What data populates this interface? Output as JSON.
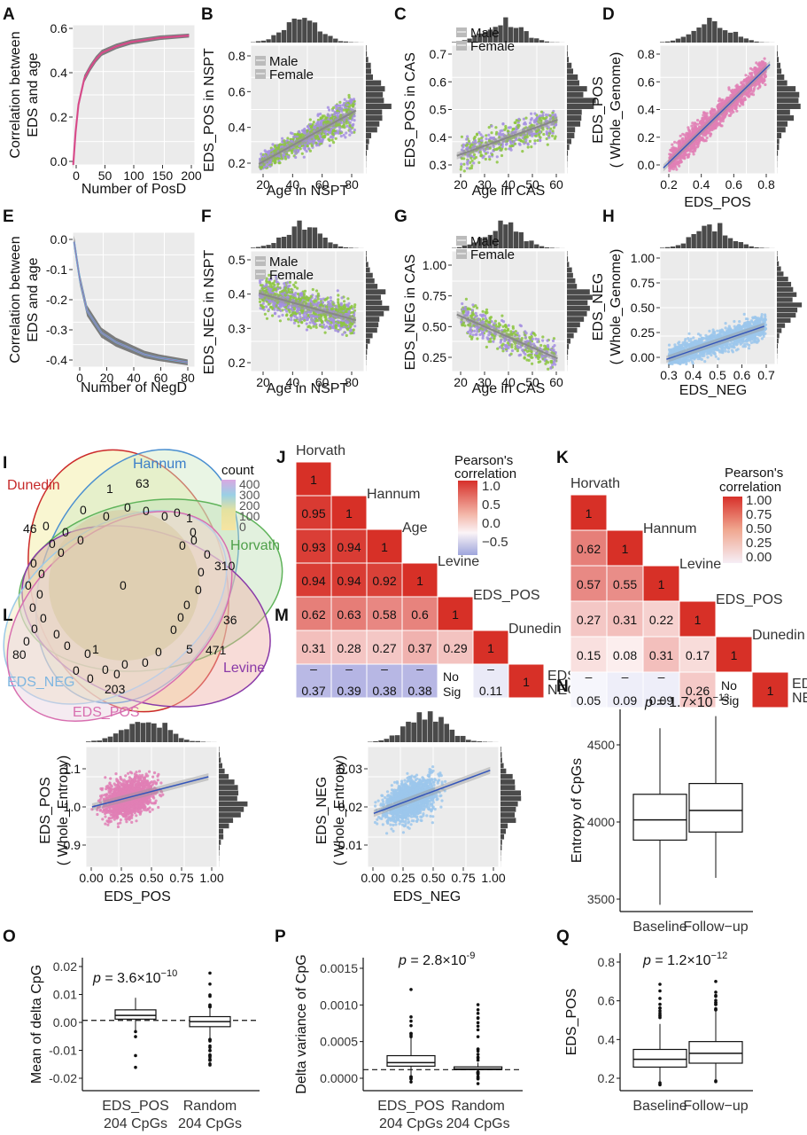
{
  "panels": {
    "A": {
      "letter": "A",
      "ylabel": [
        "Correlation between",
        "EDS and age"
      ],
      "xlabel": "Number of PosD",
      "yticks": [
        "0.0",
        "0.2",
        "0.4",
        "0.6"
      ],
      "xticks": [
        "0",
        "50",
        "100",
        "150",
        "200"
      ]
    },
    "B": {
      "letter": "B",
      "ylabel": "EDS_POS in NSPT",
      "xlabel": "Age in NSPT",
      "yticks": [
        "0.2",
        "0.4",
        "0.6",
        "0.8"
      ],
      "xticks": [
        "20",
        "40",
        "60",
        "80"
      ],
      "legend": [
        "Male",
        "Female"
      ]
    },
    "C": {
      "letter": "C",
      "ylabel": "EDS_POS in CAS",
      "xlabel": "Age in CAS",
      "yticks": [
        "0.3",
        "0.4",
        "0.5",
        "0.6",
        "0.7"
      ],
      "xticks": [
        "20",
        "30",
        "40",
        "50",
        "60"
      ],
      "legend": [
        "Male",
        "Female"
      ]
    },
    "D": {
      "letter": "D",
      "ylabel": [
        "EDS_POS",
        "( Whole_Genome)"
      ],
      "xlabel": "EDS_POS",
      "yticks": [
        "0.0",
        "0.2",
        "0.4",
        "0.6",
        "0.8"
      ],
      "xticks": [
        "0.2",
        "0.4",
        "0.6",
        "0.8"
      ]
    },
    "E": {
      "letter": "E",
      "ylabel": [
        "Correlation between",
        "EDS and age"
      ],
      "xlabel": "Number of NegD",
      "yticks": [
        "0.0",
        "-0.1",
        "-0.2",
        "-0.3",
        "-0.4"
      ],
      "xticks": [
        "0",
        "20",
        "40",
        "60",
        "80"
      ]
    },
    "F": {
      "letter": "F",
      "ylabel": "EDS_NEG in NSPT",
      "xlabel": "Age in NSPT",
      "yticks": [
        "0.2",
        "0.3",
        "0.4",
        "0.5"
      ],
      "xticks": [
        "20",
        "40",
        "60",
        "80"
      ],
      "legend": [
        "Male",
        "Female"
      ]
    },
    "G": {
      "letter": "G",
      "ylabel": "EDS_NEG in CAS",
      "xlabel": "Age in CAS",
      "yticks": [
        "0.25",
        "0.50",
        "0.75",
        "1.00"
      ],
      "xticks": [
        "20",
        "30",
        "40",
        "50",
        "60"
      ],
      "legend": [
        "Male",
        "Female"
      ]
    },
    "H": {
      "letter": "H",
      "ylabel": [
        "EDS_NEG",
        "( Whole_Genome)"
      ],
      "xlabel": "EDS_NEG",
      "yticks": [
        "0.00",
        "0.25",
        "0.50",
        "0.75",
        "1.00"
      ],
      "xticks": [
        "0.3",
        "0.4",
        "0.5",
        "0.6",
        "0.7"
      ]
    },
    "I": {
      "letter": "I",
      "legend_title": "count",
      "legend_ticks": [
        "400",
        "300",
        "200",
        "100",
        "0"
      ],
      "sets": [
        "Hannum",
        "Dunedin",
        "Horvath",
        "Levine",
        "EDS_NEG",
        "EDS_POS"
      ],
      "counts": [
        "63",
        "46",
        "310",
        "471",
        "80",
        "203",
        "0",
        "1",
        "0",
        "0",
        "0",
        "0",
        "0",
        "1",
        "0",
        "0",
        "0",
        "0",
        "0",
        "0",
        "0",
        "0",
        "0",
        "0",
        "0",
        "0",
        "0",
        "0",
        "0",
        "0",
        "0",
        "5",
        "36",
        "0",
        "0",
        "0",
        "0",
        "0",
        "0",
        "0",
        "0",
        "0",
        "0",
        "0",
        "1",
        "0",
        "0",
        "0",
        "0",
        "0"
      ]
    },
    "J": {
      "letter": "J",
      "legend_title": [
        "Pearson's",
        "correlation"
      ],
      "legend_ticks": [
        "1.0",
        "0.5",
        "0.0",
        "−0.5"
      ],
      "labels": [
        "Horvath",
        "Hannum",
        "Age",
        "Levine",
        "EDS_POS",
        "Dunedin",
        "EDS_\nNEG"
      ]
    },
    "K": {
      "letter": "K",
      "legend_title": [
        "Pearson's",
        "correlation"
      ],
      "legend_ticks": [
        "1.00",
        "0.75",
        "0.50",
        "0.25",
        "0.00"
      ],
      "labels": [
        "Horvath",
        "Hannum",
        "Levine",
        "EDS_POS",
        "Dunedin",
        "EDS_\nNEG"
      ]
    },
    "L": {
      "letter": "L",
      "ylabel": [
        "EDS_POS",
        "( Whole_Entropy)"
      ],
      "xlabel": "EDS_POS",
      "yticks": [
        "0.9",
        "1.0",
        "1.1"
      ],
      "xticks": [
        "0.00",
        "0.25",
        "0.50",
        "0.75",
        "1.00"
      ]
    },
    "M": {
      "letter": "M",
      "ylabel": [
        "EDS_NEG",
        "( Whole_Entropy)"
      ],
      "xlabel": "EDS_NEG",
      "yticks": [
        "0.01",
        "0.02",
        "0.03"
      ],
      "xticks": [
        "0.00",
        "0.25",
        "0.50",
        "0.75",
        "1.00"
      ]
    },
    "N": {
      "letter": "N",
      "ylabel": "Entropy of CpGs",
      "pvalue": "p = 1.7×10",
      "pexp": "−13",
      "yticks": [
        "3500",
        "4000",
        "4500"
      ],
      "categories": [
        "Baseline",
        "Follow−up"
      ]
    },
    "O": {
      "letter": "O",
      "ylabel": "Mean of delta CpG",
      "pvalue": "p = 3.6×10",
      "pexp": "−10",
      "yticks": [
        "0.02",
        "0.01",
        "0.00",
        "-0.01",
        "-0.02"
      ],
      "categories": [
        "EDS_POS",
        "Random"
      ],
      "sub": [
        "204 CpGs",
        "204 CpGs"
      ]
    },
    "P": {
      "letter": "P",
      "ylabel": "Delta variance of CpG",
      "pvalue": "p = 2.8×10",
      "pexp": "-9",
      "yticks": [
        "0.0015",
        "0.0010",
        "0.0005",
        "0.0000"
      ],
      "categories": [
        "EDS_POS",
        "Random"
      ],
      "sub": [
        "204 CpGs",
        "204 CpGs"
      ]
    },
    "Q": {
      "letter": "Q",
      "ylabel": "EDS_POS",
      "pvalue": "p = 1.2×10",
      "pexp": "−12",
      "yticks": [
        "0.8",
        "0.6",
        "0.4",
        "0.2"
      ],
      "categories": [
        "Baseline",
        "Follow−up"
      ]
    }
  },
  "chart_data": [
    {
      "panel": "A",
      "type": "line",
      "x": [
        1,
        5,
        10,
        20,
        30,
        40,
        50,
        75,
        100,
        150,
        200
      ],
      "y": [
        0.0,
        0.15,
        0.28,
        0.4,
        0.45,
        0.49,
        0.52,
        0.55,
        0.57,
        0.59,
        0.6
      ],
      "ylim": [
        0,
        0.65
      ],
      "xlim": [
        0,
        210
      ],
      "color": "#d6549a"
    },
    {
      "panel": "B",
      "type": "scatter",
      "regression": {
        "x": [
          20,
          80
        ],
        "y": [
          0.25,
          0.52
        ]
      },
      "xlim": [
        15,
        85
      ],
      "ylim": [
        0.2,
        0.85
      ],
      "series": [
        {
          "name": "Male",
          "color": "#a58fe0"
        },
        {
          "name": "Female",
          "color": "#8cc63f"
        }
      ]
    },
    {
      "panel": "C",
      "type": "scatter",
      "regression": {
        "x": [
          22,
          62
        ],
        "y": [
          0.32,
          0.46
        ]
      },
      "xlim": [
        20,
        65
      ],
      "ylim": [
        0.25,
        0.75
      ],
      "series": [
        {
          "name": "Male",
          "color": "#a58fe0"
        },
        {
          "name": "Female",
          "color": "#8cc63f"
        }
      ]
    },
    {
      "panel": "D",
      "type": "scatter",
      "regression": {
        "x": [
          0.2,
          0.82
        ],
        "y": [
          0.02,
          0.72
        ]
      },
      "xlim": [
        0.18,
        0.85
      ],
      "ylim": [
        -0.02,
        0.85
      ],
      "color": "#e17fb5"
    },
    {
      "panel": "E",
      "type": "line",
      "x": [
        1,
        5,
        10,
        20,
        30,
        40,
        50,
        60,
        80
      ],
      "y": [
        0.0,
        -0.12,
        -0.22,
        -0.29,
        -0.32,
        -0.34,
        -0.36,
        -0.37,
        -0.385
      ],
      "ylim": [
        -0.4,
        0.03
      ],
      "xlim": [
        0,
        85
      ],
      "color": "#6aaee0"
    },
    {
      "panel": "F",
      "type": "scatter",
      "regression": {
        "x": [
          20,
          80
        ],
        "y": [
          0.44,
          0.35
        ]
      },
      "xlim": [
        15,
        85
      ],
      "ylim": [
        0.18,
        0.58
      ],
      "series": [
        {
          "name": "Male",
          "color": "#a58fe0"
        },
        {
          "name": "Female",
          "color": "#8cc63f"
        }
      ]
    },
    {
      "panel": "G",
      "type": "scatter",
      "regression": {
        "x": [
          22,
          62
        ],
        "y": [
          0.56,
          0.22
        ]
      },
      "xlim": [
        20,
        65
      ],
      "ylim": [
        0.12,
        1.05
      ],
      "series": [
        {
          "name": "Male",
          "color": "#a58fe0"
        },
        {
          "name": "Female",
          "color": "#8cc63f"
        }
      ]
    },
    {
      "panel": "H",
      "type": "scatter",
      "regression": {
        "x": [
          0.25,
          0.7
        ],
        "y": [
          0.0,
          0.32
        ]
      },
      "xlim": [
        0.22,
        0.75
      ],
      "ylim": [
        -0.05,
        1.05
      ],
      "color": "#9cc7ec"
    },
    {
      "panel": "J",
      "type": "heatmap",
      "rows": [
        "Horvath",
        "Hannum",
        "Age",
        "Levine",
        "EDS_POS",
        "Dunedin",
        "EDS_NEG"
      ],
      "values": [
        [
          1
        ],
        [
          0.95,
          1
        ],
        [
          0.93,
          0.94,
          1
        ],
        [
          0.94,
          0.94,
          0.92,
          1
        ],
        [
          0.62,
          0.63,
          0.58,
          0.6,
          1
        ],
        [
          0.31,
          0.28,
          0.27,
          0.37,
          0.29,
          1
        ],
        [
          -0.37,
          -0.39,
          -0.38,
          -0.38,
          "No Sig",
          -0.11,
          1
        ]
      ]
    },
    {
      "panel": "K",
      "type": "heatmap",
      "rows": [
        "Horvath",
        "Hannum",
        "Levine",
        "EDS_POS",
        "Dunedin",
        "EDS_NEG"
      ],
      "values": [
        [
          1
        ],
        [
          0.62,
          1
        ],
        [
          0.57,
          0.55,
          1
        ],
        [
          0.27,
          0.31,
          0.22,
          1
        ],
        [
          0.15,
          0.08,
          0.31,
          0.17,
          1
        ],
        [
          -0.05,
          -0.09,
          -0.09,
          0.26,
          "No Sig",
          1
        ]
      ]
    },
    {
      "panel": "L",
      "type": "scatter",
      "regression": {
        "x": [
          0.0,
          0.95
        ],
        "y": [
          1.0,
          1.075
        ]
      },
      "xlim": [
        -0.05,
        1.02
      ],
      "ylim": [
        0.85,
        1.15
      ],
      "color": "#e17fb5"
    },
    {
      "panel": "M",
      "type": "scatter",
      "regression": {
        "x": [
          0.0,
          0.95
        ],
        "y": [
          0.0205,
          0.0305
        ]
      },
      "xlim": [
        -0.05,
        1.02
      ],
      "ylim": [
        0.008,
        0.036
      ],
      "color": "#9cc7ec"
    },
    {
      "panel": "N",
      "type": "box",
      "categories": [
        "Baseline",
        "Follow−up"
      ],
      "boxes": [
        {
          "min": 3450,
          "q1": 3930,
          "median": 4080,
          "q3": 4270,
          "max": 4760
        },
        {
          "min": 3650,
          "q1": 3990,
          "median": 4150,
          "q3": 4350,
          "max": 4850
        }
      ],
      "ylim": [
        3400,
        4900
      ]
    },
    {
      "panel": "O",
      "type": "box",
      "categories": [
        "EDS_POS 204 CpGs",
        "Random 204 CpGs"
      ],
      "boxes": [
        {
          "min": -0.004,
          "q1": 0.0005,
          "median": 0.002,
          "q3": 0.0042,
          "max": 0.009
        },
        {
          "min": -0.007,
          "q1": -0.0025,
          "median": -0.0005,
          "q3": 0.0015,
          "max": 0.005
        }
      ],
      "ylim": [
        -0.028,
        0.025
      ]
    },
    {
      "panel": "P",
      "type": "box",
      "categories": [
        "EDS_POS 204 CpGs",
        "Random 204 CpGs"
      ],
      "boxes": [
        {
          "min": -0.0001,
          "q1": 5e-05,
          "median": 0.0001,
          "q3": 0.0002,
          "max": 0.00045
        },
        {
          "min": -3e-05,
          "q1": 0.0,
          "median": 1e-05,
          "q3": 4e-05,
          "max": 0.0001
        }
      ],
      "ylim": [
        -0.0003,
        0.0016
      ]
    },
    {
      "panel": "Q",
      "type": "box",
      "categories": [
        "Baseline",
        "Follow−up"
      ],
      "boxes": [
        {
          "min": 0.22,
          "q1": 0.3,
          "median": 0.34,
          "q3": 0.39,
          "max": 0.52
        },
        {
          "min": 0.23,
          "q1": 0.32,
          "median": 0.37,
          "q3": 0.43,
          "max": 0.59
        }
      ],
      "ylim": [
        0.18,
        0.88
      ]
    }
  ]
}
